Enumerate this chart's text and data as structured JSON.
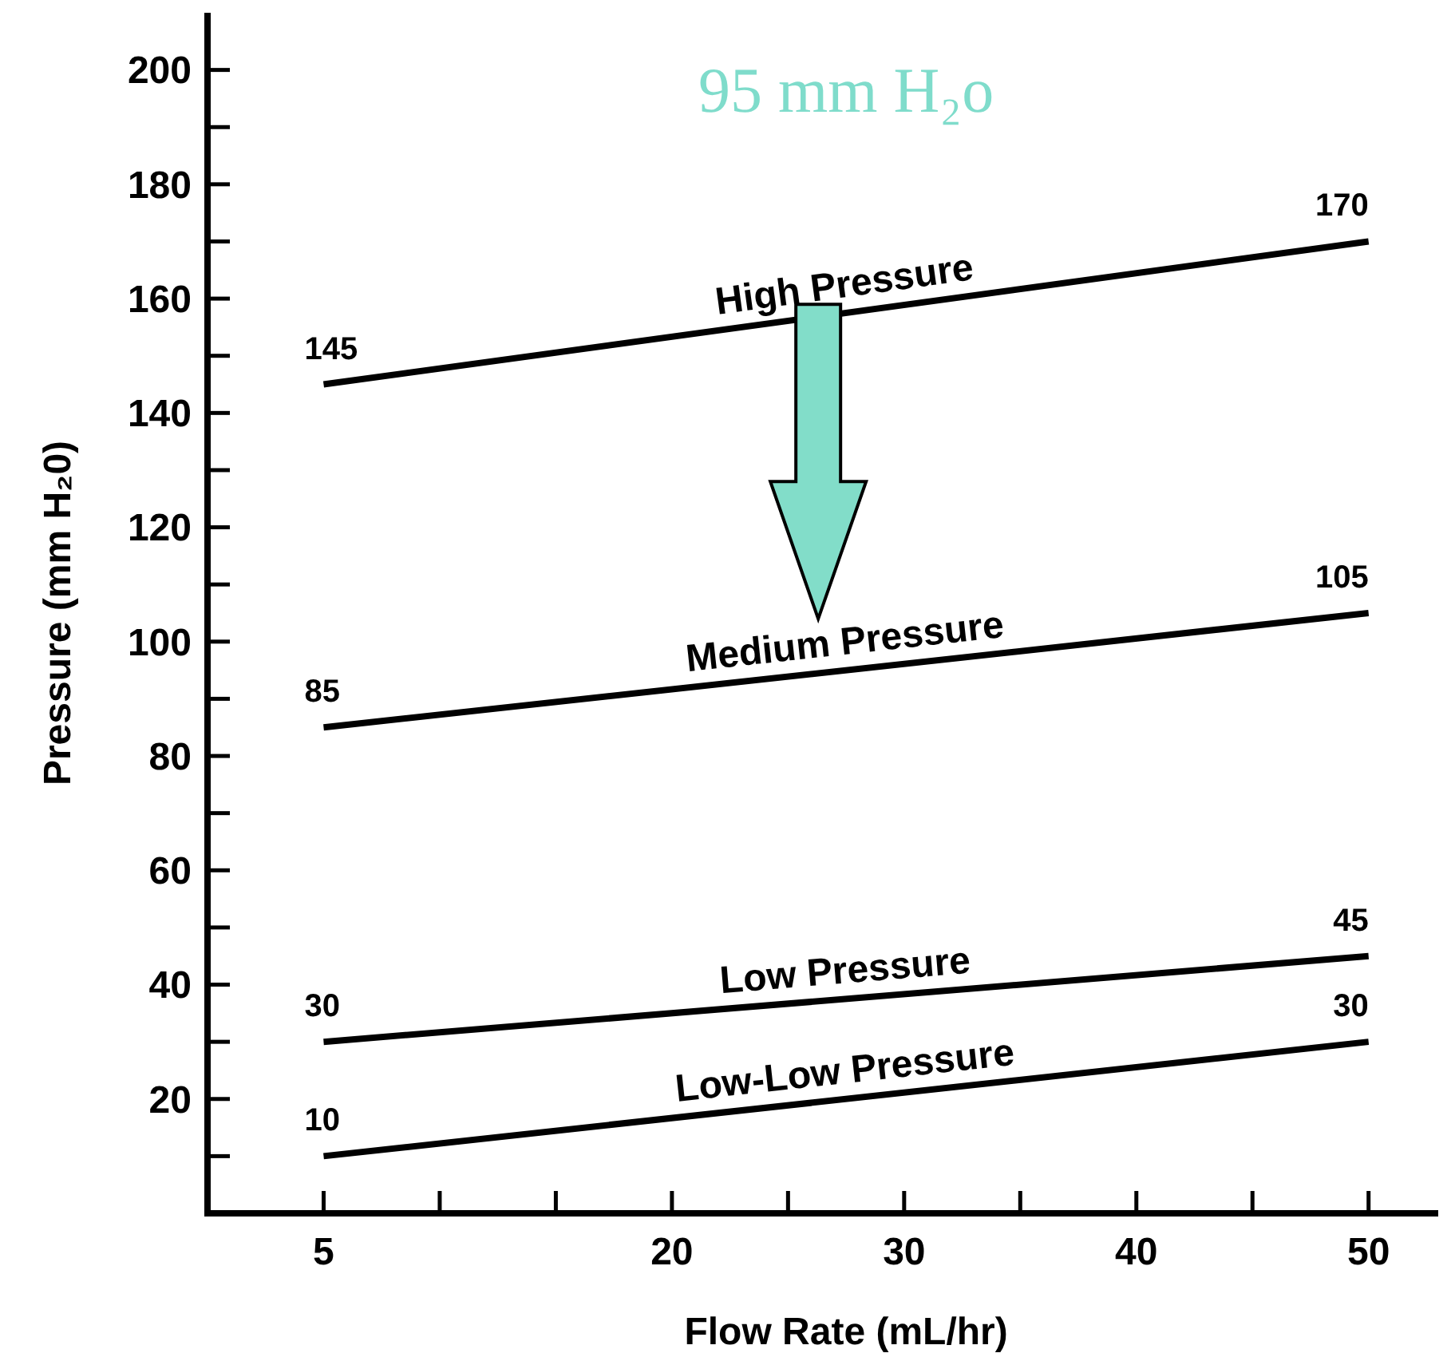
{
  "chart_data": {
    "type": "line",
    "title": "95 mm H₂o",
    "xlabel": "Flow Rate (mL/hr)",
    "ylabel": "Pressure (mm H₂0)",
    "xlim": [
      0,
      53
    ],
    "xticks": [
      5,
      {
        "value": 10,
        "label": null
      },
      {
        "value": 15,
        "label": null
      },
      20,
      {
        "value": 25,
        "label": null
      },
      30,
      {
        "value": 35,
        "label": null
      },
      40,
      {
        "value": 45,
        "label": null
      },
      50
    ],
    "ylim": [
      0,
      210
    ],
    "yticks": [
      {
        "value": 10,
        "label": null
      },
      20,
      {
        "value": 30,
        "label": null
      },
      40,
      {
        "value": 50,
        "label": null
      },
      60,
      {
        "value": 70,
        "label": null
      },
      80,
      {
        "value": 90,
        "label": null
      },
      100,
      {
        "value": 110,
        "label": null
      },
      120,
      {
        "value": 130,
        "label": null
      },
      140,
      {
        "value": 150,
        "label": null
      },
      160,
      {
        "value": 170,
        "label": null
      },
      180,
      {
        "value": 190,
        "label": null
      },
      200
    ],
    "x": [
      5,
      50
    ],
    "series": [
      {
        "name": "High Pressure",
        "color": "#000000",
        "values": [
          145,
          170
        ]
      },
      {
        "name": "Medium Pressure",
        "color": "#000000",
        "values": [
          85,
          105
        ]
      },
      {
        "name": "Low Pressure",
        "color": "#000000",
        "values": [
          30,
          45
        ]
      },
      {
        "name": "Low-Low Pressure",
        "color": "#000000",
        "values": [
          10,
          30
        ]
      }
    ],
    "data_labels": true,
    "grid": false,
    "marker": "none",
    "line_style": "solid"
  }
}
